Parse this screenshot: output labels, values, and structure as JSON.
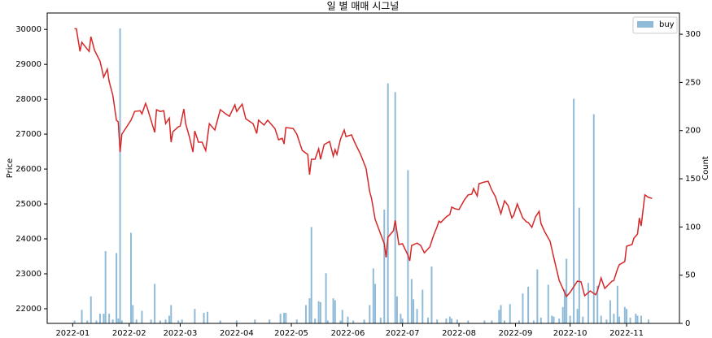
{
  "chart_data": {
    "type": "combo",
    "title": "일 별 매매 시그널",
    "y_label": "Price",
    "y2_label": "Count",
    "xlim": [
      -14,
      333
    ],
    "xticks": [
      {
        "value": 0,
        "label": "2022-01"
      },
      {
        "value": 31,
        "label": "2022-02"
      },
      {
        "value": 59,
        "label": "2022-03"
      },
      {
        "value": 90,
        "label": "2022-04"
      },
      {
        "value": 120,
        "label": "2022-05"
      },
      {
        "value": 151,
        "label": "2022-06"
      },
      {
        "value": 181,
        "label": "2022-07"
      },
      {
        "value": 212,
        "label": "2022-08"
      },
      {
        "value": 243,
        "label": "2022-09"
      },
      {
        "value": 273,
        "label": "2022-10"
      },
      {
        "value": 304,
        "label": "2022-11"
      }
    ],
    "ylim": [
      21580,
      30470
    ],
    "yticks": [
      22000,
      23000,
      24000,
      25000,
      26000,
      27000,
      28000,
      29000,
      30000
    ],
    "y2lim": [
      0,
      322
    ],
    "y2ticks": [
      0,
      50,
      100,
      150,
      200,
      250,
      300
    ],
    "legend": "upper right",
    "series": [
      {
        "type": "line",
        "color": "#d62728",
        "x": [
          1,
          2,
          4,
          5,
          9,
          10,
          12,
          15,
          17,
          19,
          20,
          22,
          24,
          25,
          26,
          27,
          32,
          34,
          37,
          38,
          40,
          41,
          45,
          46,
          48,
          50,
          51,
          53,
          54,
          55,
          58,
          59,
          61,
          62,
          64,
          66,
          67,
          69,
          71,
          73,
          75,
          78,
          81,
          84,
          86,
          89,
          90,
          93,
          95,
          99,
          101,
          102,
          105,
          107,
          111,
          113,
          115,
          116,
          117,
          121,
          123,
          126,
          129,
          130,
          131,
          133,
          135,
          136,
          138,
          141,
          143,
          144,
          145,
          147,
          149,
          150,
          153,
          155,
          158,
          161,
          163,
          164,
          166,
          169,
          171,
          172,
          173,
          176,
          177,
          179,
          181,
          184,
          185,
          186,
          189,
          191,
          193,
          196,
          198,
          200,
          201,
          202,
          205,
          207,
          208,
          210,
          212,
          215,
          217,
          219,
          220,
          222,
          223,
          226,
          228,
          230,
          232,
          235,
          237,
          239,
          241,
          242,
          244,
          247,
          249,
          250,
          252,
          254,
          256,
          257,
          259,
          262,
          264,
          267,
          269,
          271,
          273,
          277,
          279,
          281,
          284,
          287,
          288,
          290,
          292,
          296,
          297,
          299,
          300,
          303,
          304,
          307,
          308,
          310,
          311,
          312,
          314,
          316,
          318
        ],
        "values": [
          30020,
          30020,
          29370,
          29630,
          29370,
          29790,
          29400,
          29090,
          28630,
          28860,
          28510,
          28120,
          27400,
          27350,
          26490,
          27000,
          27400,
          27650,
          27670,
          27580,
          27880,
          27740,
          27050,
          27700,
          27650,
          27670,
          27300,
          27460,
          26770,
          27070,
          27210,
          27230,
          27720,
          27300,
          26930,
          26490,
          27090,
          26770,
          26770,
          26530,
          27300,
          27120,
          27700,
          27580,
          27510,
          27840,
          27650,
          27860,
          27440,
          27300,
          27020,
          27400,
          27260,
          27400,
          27160,
          26840,
          26880,
          26720,
          27190,
          27160,
          27000,
          26530,
          26420,
          25840,
          26280,
          26280,
          26580,
          26280,
          26700,
          26790,
          26370,
          26560,
          26420,
          26860,
          27120,
          26930,
          26980,
          26740,
          26420,
          26020,
          25350,
          25160,
          24560,
          24140,
          23860,
          23470,
          24050,
          24230,
          24530,
          23840,
          23860,
          23530,
          23370,
          23810,
          23880,
          23810,
          23600,
          23770,
          24090,
          24350,
          24510,
          24470,
          24630,
          24700,
          24910,
          24860,
          24840,
          25120,
          25260,
          25280,
          25440,
          25230,
          25580,
          25630,
          25650,
          25400,
          25210,
          24720,
          25090,
          24950,
          24600,
          24670,
          25000,
          24600,
          24490,
          24470,
          24330,
          24630,
          24790,
          24440,
          24210,
          23930,
          23470,
          22810,
          22580,
          22350,
          22470,
          22790,
          22770,
          22370,
          22510,
          22400,
          22510,
          22880,
          22580,
          22790,
          22810,
          23140,
          23260,
          23350,
          23790,
          23840,
          24020,
          24140,
          24600,
          24370,
          25260,
          25190,
          25160
        ]
      },
      {
        "type": "bar",
        "name": "buy",
        "axis": "y2",
        "color": "#8fbbd9",
        "x": [
          1,
          5,
          8,
          10,
          13,
          15,
          17,
          18,
          20,
          22,
          24,
          25,
          26,
          27,
          32,
          33,
          35,
          38,
          43,
          45,
          48,
          51,
          53,
          54,
          58,
          60,
          67,
          72,
          74,
          81,
          90,
          100,
          108,
          114,
          116,
          117,
          123,
          128,
          130,
          131,
          133,
          135,
          136,
          139,
          140,
          143,
          144,
          147,
          148,
          151,
          154,
          160,
          163,
          165,
          166,
          169,
          171,
          173,
          177,
          178,
          180,
          181,
          184,
          186,
          187,
          189,
          192,
          195,
          197,
          200,
          205,
          207,
          208,
          211,
          217,
          226,
          230,
          234,
          235,
          237,
          240,
          245,
          247,
          250,
          253,
          255,
          257,
          261,
          263,
          264,
          267,
          269,
          270,
          271,
          273,
          275,
          277,
          278,
          280,
          283,
          286,
          288,
          290,
          293,
          295,
          297,
          299,
          300,
          303,
          304,
          306,
          309,
          310,
          312,
          316
        ],
        "values": [
          3,
          14,
          3,
          28,
          3,
          10,
          10,
          75,
          10,
          4,
          73,
          5,
          306,
          3,
          94,
          19,
          4,
          13,
          4,
          41,
          3,
          4,
          8,
          19,
          3,
          4,
          15,
          11,
          12,
          3,
          3,
          4,
          4,
          10,
          11,
          11,
          4,
          19,
          26,
          100,
          5,
          23,
          22,
          52,
          3,
          26,
          24,
          3,
          14,
          7,
          3,
          4,
          19,
          57,
          41,
          6,
          118,
          249,
          240,
          28,
          10,
          5,
          159,
          46,
          25,
          15,
          35,
          6,
          59,
          4,
          5,
          7,
          5,
          4,
          3,
          3,
          3,
          14,
          19,
          3,
          20,
          3,
          31,
          38,
          3,
          56,
          6,
          40,
          8,
          7,
          5,
          17,
          35,
          67,
          8,
          233,
          15,
          120,
          7,
          42,
          217,
          39,
          8,
          4,
          24,
          10,
          39,
          7,
          17,
          15,
          6,
          10,
          8,
          8,
          4
        ]
      }
    ]
  }
}
